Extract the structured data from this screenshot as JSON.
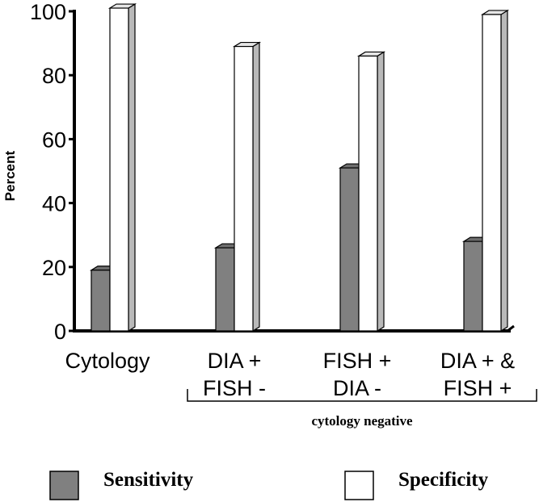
{
  "chart_data": {
    "type": "bar",
    "title": "",
    "ylabel": "Percent",
    "xlabel": "",
    "ylim": [
      0,
      100
    ],
    "yticks": [
      "0",
      "20",
      "40",
      "60",
      "80",
      "100"
    ],
    "categories": [
      [
        "Cytology"
      ],
      [
        "DIA +",
        "FISH -"
      ],
      [
        "FISH +",
        "DIA -"
      ],
      [
        "DIA + &",
        "FISH +"
      ]
    ],
    "group_label": "cytology negative",
    "series": [
      {
        "name": "Sensitivity",
        "color": "#808080",
        "values": [
          19,
          26,
          51,
          28
        ]
      },
      {
        "name": "Specificity",
        "color": "#ffffff",
        "values": [
          101,
          89,
          86,
          99
        ]
      }
    ],
    "legend_position": "bottom",
    "grid": false,
    "style": "3d-bars"
  }
}
